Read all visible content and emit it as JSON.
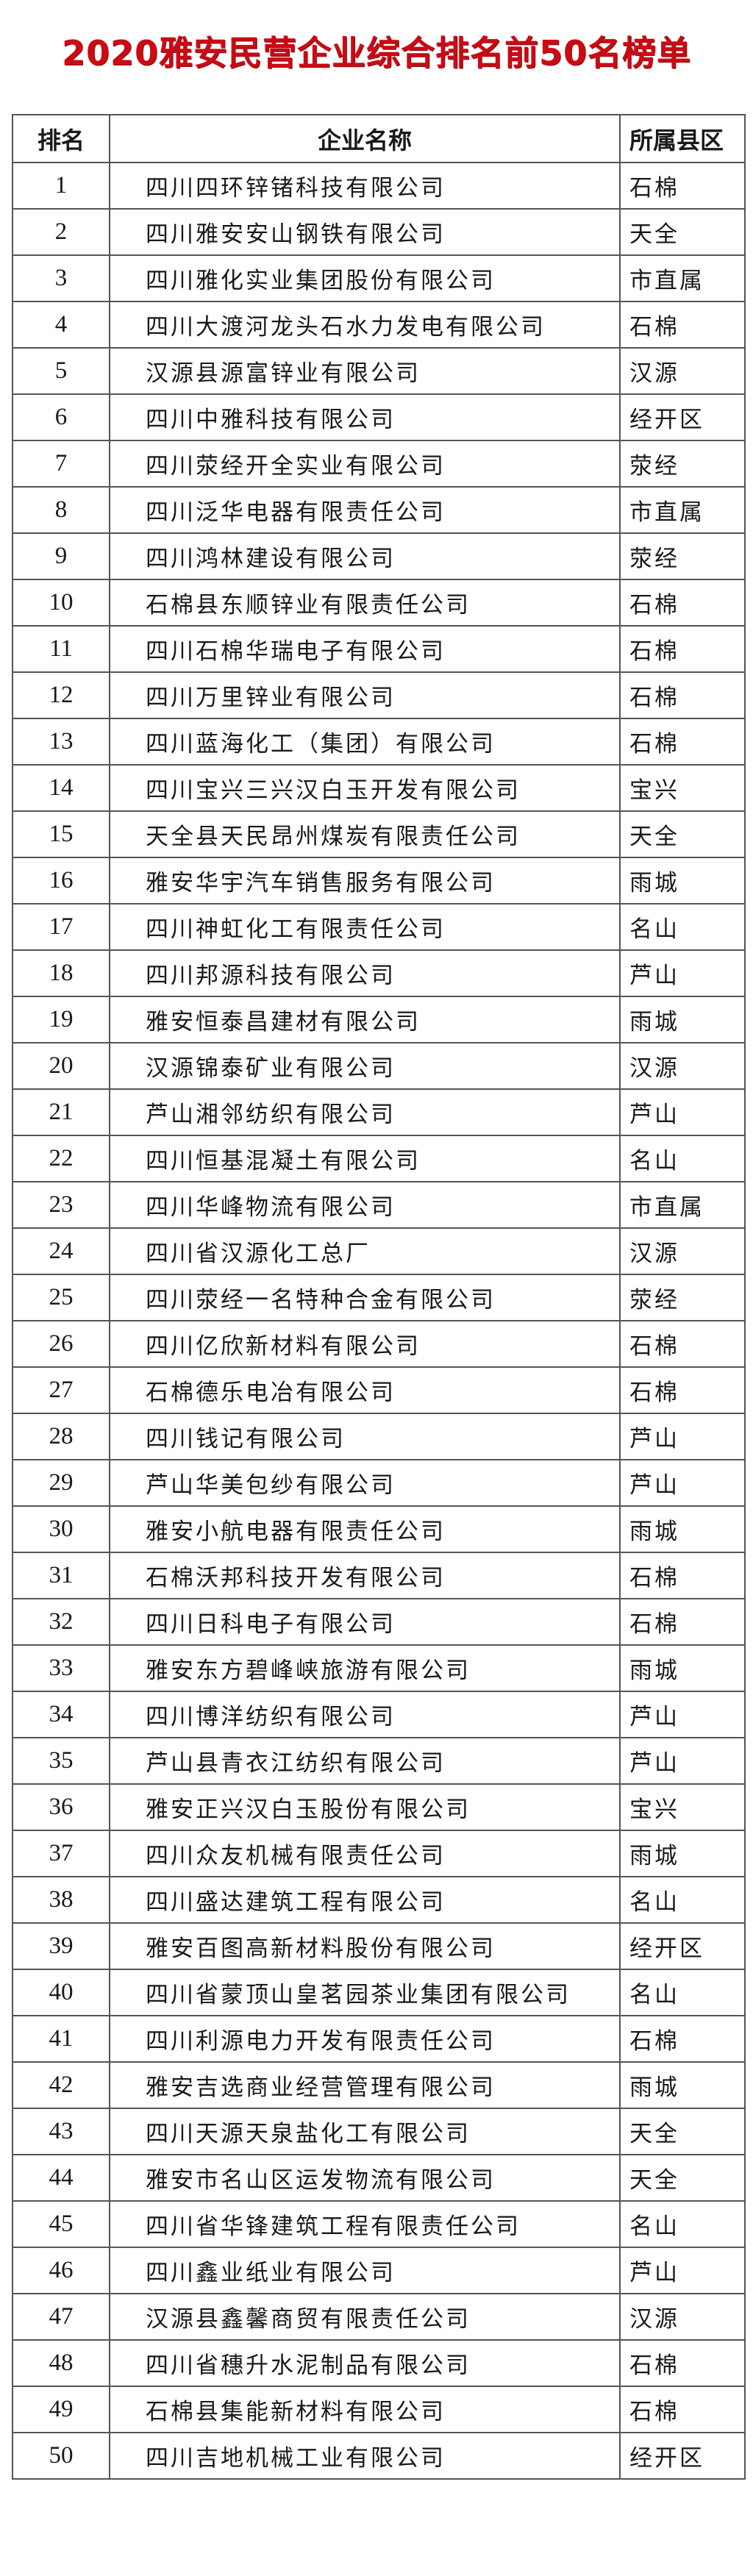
{
  "title": "2020雅安民营企业综合排名前50名榜单",
  "colors": {
    "title": "#cc0a14",
    "border": "#555555",
    "text": "#1a1a1a"
  },
  "table": {
    "headers": {
      "rank": "排名",
      "name": "企业名称",
      "district": "所属县区"
    },
    "rows": [
      {
        "rank": "1",
        "name": "四川四环锌锗科技有限公司",
        "district": "石棉"
      },
      {
        "rank": "2",
        "name": "四川雅安安山钢铁有限公司",
        "district": "天全"
      },
      {
        "rank": "3",
        "name": "四川雅化实业集团股份有限公司",
        "district": "市直属"
      },
      {
        "rank": "4",
        "name": "四川大渡河龙头石水力发电有限公司",
        "district": "石棉"
      },
      {
        "rank": "5",
        "name": "汉源县源富锌业有限公司",
        "district": "汉源"
      },
      {
        "rank": "6",
        "name": "四川中雅科技有限公司",
        "district": "经开区"
      },
      {
        "rank": "7",
        "name": "四川荥经开全实业有限公司",
        "district": "荥经"
      },
      {
        "rank": "8",
        "name": "四川泛华电器有限责任公司",
        "district": "市直属"
      },
      {
        "rank": "9",
        "name": "四川鸿林建设有限公司",
        "district": "荥经"
      },
      {
        "rank": "10",
        "name": "石棉县东顺锌业有限责任公司",
        "district": "石棉"
      },
      {
        "rank": "11",
        "name": "四川石棉华瑞电子有限公司",
        "district": "石棉"
      },
      {
        "rank": "12",
        "name": "四川万里锌业有限公司",
        "district": "石棉"
      },
      {
        "rank": "13",
        "name": "四川蓝海化工（集团）有限公司",
        "district": "石棉"
      },
      {
        "rank": "14",
        "name": "四川宝兴三兴汉白玉开发有限公司",
        "district": "宝兴"
      },
      {
        "rank": "15",
        "name": "天全县天民昂州煤炭有限责任公司",
        "district": "天全"
      },
      {
        "rank": "16",
        "name": "雅安华宇汽车销售服务有限公司",
        "district": "雨城"
      },
      {
        "rank": "17",
        "name": "四川神虹化工有限责任公司",
        "district": "名山"
      },
      {
        "rank": "18",
        "name": "四川邦源科技有限公司",
        "district": "芦山"
      },
      {
        "rank": "19",
        "name": "雅安恒泰昌建材有限公司",
        "district": "雨城"
      },
      {
        "rank": "20",
        "name": "汉源锦泰矿业有限公司",
        "district": "汉源"
      },
      {
        "rank": "21",
        "name": "芦山湘邻纺织有限公司",
        "district": "芦山"
      },
      {
        "rank": "22",
        "name": "四川恒基混凝土有限公司",
        "district": "名山"
      },
      {
        "rank": "23",
        "name": "四川华峰物流有限公司",
        "district": "市直属"
      },
      {
        "rank": "24",
        "name": "四川省汉源化工总厂",
        "district": "汉源"
      },
      {
        "rank": "25",
        "name": "四川荥经一名特种合金有限公司",
        "district": "荥经"
      },
      {
        "rank": "26",
        "name": "四川亿欣新材料有限公司",
        "district": "石棉"
      },
      {
        "rank": "27",
        "name": "石棉德乐电冶有限公司",
        "district": "石棉"
      },
      {
        "rank": "28",
        "name": "四川钱记有限公司",
        "district": "芦山"
      },
      {
        "rank": "29",
        "name": "芦山华美包纱有限公司",
        "district": "芦山"
      },
      {
        "rank": "30",
        "name": "雅安小航电器有限责任公司",
        "district": "雨城"
      },
      {
        "rank": "31",
        "name": "石棉沃邦科技开发有限公司",
        "district": "石棉"
      },
      {
        "rank": "32",
        "name": "四川日科电子有限公司",
        "district": "石棉"
      },
      {
        "rank": "33",
        "name": "雅安东方碧峰峡旅游有限公司",
        "district": "雨城"
      },
      {
        "rank": "34",
        "name": "四川博洋纺织有限公司",
        "district": "芦山"
      },
      {
        "rank": "35",
        "name": "芦山县青衣江纺织有限公司",
        "district": "芦山"
      },
      {
        "rank": "36",
        "name": "雅安正兴汉白玉股份有限公司",
        "district": "宝兴"
      },
      {
        "rank": "37",
        "name": "四川众友机械有限责任公司",
        "district": "雨城"
      },
      {
        "rank": "38",
        "name": "四川盛达建筑工程有限公司",
        "district": "名山"
      },
      {
        "rank": "39",
        "name": "雅安百图高新材料股份有限公司",
        "district": "经开区"
      },
      {
        "rank": "40",
        "name": "四川省蒙顶山皇茗园茶业集团有限公司",
        "district": "名山"
      },
      {
        "rank": "41",
        "name": "四川利源电力开发有限责任公司",
        "district": "石棉"
      },
      {
        "rank": "42",
        "name": "雅安吉选商业经营管理有限公司",
        "district": "雨城"
      },
      {
        "rank": "43",
        "name": "四川天源天泉盐化工有限公司",
        "district": "天全"
      },
      {
        "rank": "44",
        "name": "雅安市名山区运发物流有限公司",
        "district": "天全"
      },
      {
        "rank": "45",
        "name": "四川省华锋建筑工程有限责任公司",
        "district": "名山"
      },
      {
        "rank": "46",
        "name": "四川鑫业纸业有限公司",
        "district": "芦山"
      },
      {
        "rank": "47",
        "name": "汉源县鑫馨商贸有限责任公司",
        "district": "汉源"
      },
      {
        "rank": "48",
        "name": "四川省穗升水泥制品有限公司",
        "district": "石棉"
      },
      {
        "rank": "49",
        "name": "石棉县集能新材料有限公司",
        "district": "石棉"
      },
      {
        "rank": "50",
        "name": "四川吉地机械工业有限公司",
        "district": "经开区"
      }
    ]
  }
}
